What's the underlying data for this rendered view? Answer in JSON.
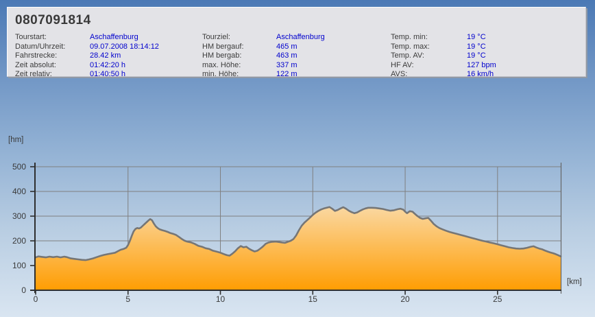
{
  "window": {
    "title": "0807091814"
  },
  "info": {
    "columns": [
      {
        "rows": [
          {
            "label": "Tourstart:",
            "value": "Aschaffenburg"
          },
          {
            "label": "Datum/Uhrzeit:",
            "value": "09.07.2008 18:14:12"
          },
          {
            "label": "Fahrstrecke:",
            "value": "28.42 km"
          },
          {
            "label": "Zeit absolut:",
            "value": "01:42:20 h"
          },
          {
            "label": "Zeit relativ:",
            "value": "01:40:50 h"
          }
        ]
      },
      {
        "rows": [
          {
            "label": "Tourziel:",
            "value": "Aschaffenburg"
          },
          {
            "label": "HM bergauf:",
            "value": "465 m"
          },
          {
            "label": "HM bergab:",
            "value": "463 m"
          },
          {
            "label": "max. Höhe:",
            "value": "337 m"
          },
          {
            "label": "min. Höhe:",
            "value": "122 m"
          }
        ]
      },
      {
        "rows": [
          {
            "label": "Temp. min:",
            "value": "19 °C"
          },
          {
            "label": "Temp. max:",
            "value": "19 °C"
          },
          {
            "label": "Temp. AV:",
            "value": "19 °C"
          },
          {
            "label": "HF AV:",
            "value": "127 bpm"
          },
          {
            "label": "AVS:",
            "value": "16 km/h"
          }
        ]
      }
    ]
  },
  "chart_data": {
    "type": "area",
    "title": "",
    "xlabel": "[km]",
    "ylabel": "[hm]",
    "xlim": [
      0,
      28.42
    ],
    "ylim": [
      0,
      500
    ],
    "xticks": [
      0,
      5,
      10,
      15,
      20,
      25
    ],
    "yticks": [
      0,
      100,
      200,
      300,
      400,
      500
    ],
    "grid": true,
    "legend": "none",
    "colors": {
      "fill_top": "#F8F4EE",
      "fill_bottom": "#FF9D02",
      "line": "#767676",
      "grid": "#7F7F7F",
      "axis": "#2E2E2E",
      "frame": "#666666"
    },
    "series": [
      {
        "name": "elevation-profile",
        "points": [
          [
            0,
            133
          ],
          [
            0.15,
            137
          ],
          [
            0.35,
            135
          ],
          [
            0.55,
            133
          ],
          [
            0.75,
            136
          ],
          [
            0.95,
            134
          ],
          [
            1.15,
            136
          ],
          [
            1.35,
            133
          ],
          [
            1.55,
            136
          ],
          [
            1.7,
            134
          ],
          [
            1.9,
            129
          ],
          [
            2.1,
            127
          ],
          [
            2.3,
            125
          ],
          [
            2.5,
            123
          ],
          [
            2.7,
            122
          ],
          [
            2.9,
            125
          ],
          [
            3.1,
            129
          ],
          [
            3.3,
            134
          ],
          [
            3.5,
            139
          ],
          [
            3.7,
            143
          ],
          [
            3.9,
            146
          ],
          [
            4.1,
            149
          ],
          [
            4.3,
            152
          ],
          [
            4.45,
            158
          ],
          [
            4.6,
            164
          ],
          [
            4.75,
            167
          ],
          [
            4.9,
            172
          ],
          [
            5.0,
            183
          ],
          [
            5.1,
            200
          ],
          [
            5.2,
            220
          ],
          [
            5.3,
            238
          ],
          [
            5.4,
            248
          ],
          [
            5.5,
            252
          ],
          [
            5.6,
            250
          ],
          [
            5.7,
            254
          ],
          [
            5.8,
            261
          ],
          [
            5.9,
            268
          ],
          [
            6.0,
            275
          ],
          [
            6.1,
            282
          ],
          [
            6.2,
            288
          ],
          [
            6.3,
            283
          ],
          [
            6.4,
            270
          ],
          [
            6.5,
            259
          ],
          [
            6.6,
            252
          ],
          [
            6.7,
            247
          ],
          [
            6.85,
            243
          ],
          [
            7.0,
            240
          ],
          [
            7.15,
            236
          ],
          [
            7.3,
            231
          ],
          [
            7.45,
            228
          ],
          [
            7.6,
            224
          ],
          [
            7.75,
            216
          ],
          [
            7.9,
            208
          ],
          [
            8.05,
            201
          ],
          [
            8.2,
            197
          ],
          [
            8.4,
            194
          ],
          [
            8.6,
            188
          ],
          [
            8.8,
            180
          ],
          [
            9.0,
            176
          ],
          [
            9.2,
            170
          ],
          [
            9.4,
            167
          ],
          [
            9.6,
            160
          ],
          [
            9.8,
            156
          ],
          [
            10.0,
            152
          ],
          [
            10.2,
            146
          ],
          [
            10.35,
            142
          ],
          [
            10.5,
            140
          ],
          [
            10.65,
            148
          ],
          [
            10.8,
            158
          ],
          [
            10.95,
            170
          ],
          [
            11.1,
            179
          ],
          [
            11.25,
            174
          ],
          [
            11.4,
            176
          ],
          [
            11.55,
            168
          ],
          [
            11.7,
            162
          ],
          [
            11.85,
            157
          ],
          [
            12.0,
            160
          ],
          [
            12.15,
            168
          ],
          [
            12.3,
            177
          ],
          [
            12.45,
            188
          ],
          [
            12.6,
            193
          ],
          [
            12.8,
            196
          ],
          [
            13.0,
            197
          ],
          [
            13.2,
            195
          ],
          [
            13.35,
            193
          ],
          [
            13.5,
            192
          ],
          [
            13.65,
            196
          ],
          [
            13.8,
            200
          ],
          [
            13.95,
            207
          ],
          [
            14.1,
            222
          ],
          [
            14.25,
            243
          ],
          [
            14.4,
            261
          ],
          [
            14.55,
            274
          ],
          [
            14.7,
            284
          ],
          [
            14.85,
            294
          ],
          [
            15.0,
            305
          ],
          [
            15.15,
            314
          ],
          [
            15.3,
            321
          ],
          [
            15.45,
            327
          ],
          [
            15.6,
            331
          ],
          [
            15.75,
            334
          ],
          [
            15.9,
            337
          ],
          [
            16.05,
            330
          ],
          [
            16.2,
            321
          ],
          [
            16.35,
            325
          ],
          [
            16.5,
            331
          ],
          [
            16.65,
            336
          ],
          [
            16.8,
            330
          ],
          [
            16.95,
            322
          ],
          [
            17.1,
            316
          ],
          [
            17.25,
            312
          ],
          [
            17.4,
            315
          ],
          [
            17.55,
            321
          ],
          [
            17.7,
            327
          ],
          [
            17.85,
            331
          ],
          [
            18.0,
            334
          ],
          [
            18.2,
            334
          ],
          [
            18.4,
            333
          ],
          [
            18.6,
            331
          ],
          [
            18.8,
            329
          ],
          [
            19.0,
            325
          ],
          [
            19.2,
            322
          ],
          [
            19.4,
            324
          ],
          [
            19.6,
            328
          ],
          [
            19.75,
            330
          ],
          [
            19.9,
            326
          ],
          [
            20.0,
            318
          ],
          [
            20.1,
            312
          ],
          [
            20.25,
            320
          ],
          [
            20.4,
            318
          ],
          [
            20.5,
            311
          ],
          [
            20.65,
            301
          ],
          [
            20.8,
            293
          ],
          [
            20.95,
            289
          ],
          [
            21.1,
            291
          ],
          [
            21.25,
            293
          ],
          [
            21.4,
            281
          ],
          [
            21.55,
            268
          ],
          [
            21.7,
            259
          ],
          [
            21.85,
            252
          ],
          [
            22.0,
            247
          ],
          [
            22.2,
            241
          ],
          [
            22.4,
            236
          ],
          [
            22.6,
            232
          ],
          [
            22.8,
            228
          ],
          [
            23.0,
            224
          ],
          [
            23.2,
            220
          ],
          [
            23.4,
            216
          ],
          [
            23.6,
            212
          ],
          [
            23.8,
            208
          ],
          [
            24.0,
            204
          ],
          [
            24.2,
            200
          ],
          [
            24.4,
            197
          ],
          [
            24.6,
            193
          ],
          [
            24.8,
            190
          ],
          [
            25.0,
            186
          ],
          [
            25.2,
            182
          ],
          [
            25.4,
            178
          ],
          [
            25.6,
            174
          ],
          [
            25.8,
            171
          ],
          [
            26.0,
            169
          ],
          [
            26.2,
            168
          ],
          [
            26.4,
            169
          ],
          [
            26.6,
            172
          ],
          [
            26.8,
            176
          ],
          [
            26.95,
            178
          ],
          [
            27.1,
            173
          ],
          [
            27.25,
            169
          ],
          [
            27.4,
            166
          ],
          [
            27.55,
            161
          ],
          [
            27.7,
            157
          ],
          [
            27.85,
            153
          ],
          [
            28.0,
            150
          ],
          [
            28.15,
            146
          ],
          [
            28.3,
            141
          ],
          [
            28.42,
            137
          ]
        ]
      }
    ]
  }
}
